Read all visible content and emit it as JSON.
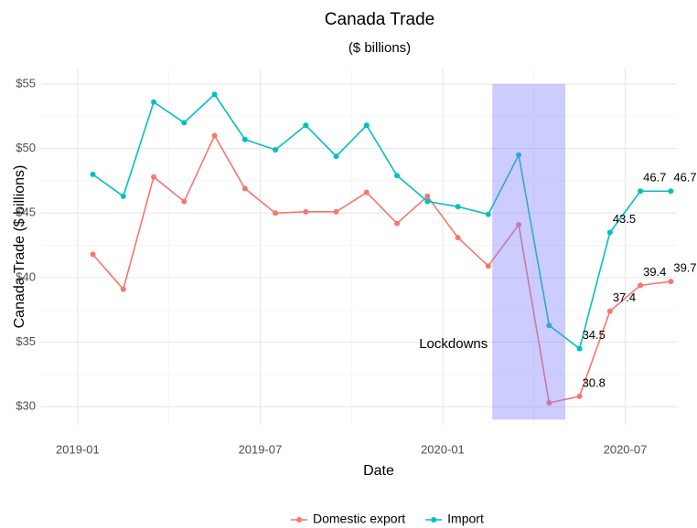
{
  "chart_data": {
    "type": "line",
    "title": "Canada Trade",
    "subtitle": "($ billions)",
    "x_label": "Date",
    "y_label": "Canada Trade ($ billions)",
    "x": [
      "2019-01",
      "2019-02",
      "2019-03",
      "2019-04",
      "2019-05",
      "2019-06",
      "2019-07",
      "2019-08",
      "2019-09",
      "2019-10",
      "2019-11",
      "2019-12",
      "2020-01",
      "2020-02",
      "2020-03",
      "2020-04",
      "2020-05",
      "2020-06",
      "2020-07",
      "2020-08"
    ],
    "series": [
      {
        "name": "Domestic export",
        "color": "#F8766D",
        "values": [
          41.8,
          39.1,
          47.8,
          45.9,
          51.0,
          46.9,
          45.0,
          45.1,
          45.1,
          46.6,
          44.2,
          46.3,
          43.1,
          40.9,
          44.1,
          30.3,
          30.8,
          37.4,
          39.4,
          39.7
        ]
      },
      {
        "name": "Import",
        "color": "#00BFC4",
        "values": [
          48.0,
          46.3,
          53.6,
          52.0,
          54.2,
          50.7,
          49.9,
          51.8,
          49.4,
          51.8,
          47.9,
          45.9,
          45.5,
          44.9,
          49.5,
          36.3,
          34.5,
          43.5,
          46.7,
          46.7
        ]
      }
    ],
    "labeled_from": 16,
    "xlim": [
      "2018-11-25",
      "2020-08-22"
    ],
    "xticks": [
      "2019-01",
      "2019-07",
      "2020-01",
      "2020-07"
    ],
    "ylim": [
      28.6,
      56.2
    ],
    "yticks": [
      {
        "value": 30,
        "label": "$30"
      },
      {
        "value": 35,
        "label": "$35"
      },
      {
        "value": 40,
        "label": "$40"
      },
      {
        "value": 45,
        "label": "$45"
      },
      {
        "value": 50,
        "label": "$50"
      },
      {
        "value": 55,
        "label": "$55"
      }
    ],
    "grid": true,
    "legend": "bottom",
    "shade": {
      "label": "Lockdowns",
      "x": [
        "2020-02-20",
        "2020-05-02"
      ],
      "y": [
        29,
        55
      ],
      "color": "#7f7fff"
    }
  }
}
